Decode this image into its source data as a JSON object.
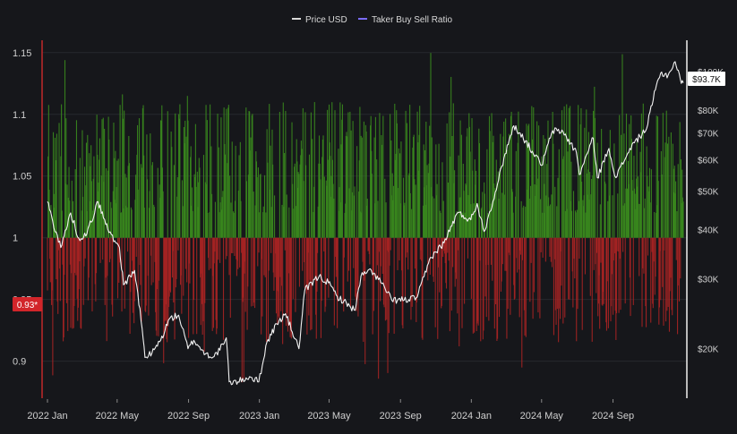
{
  "chart_data": {
    "type": "bar",
    "title": "",
    "legend": [
      {
        "name": "Price USD",
        "color": "#d9d9d9"
      },
      {
        "name": "Taker Buy Sell Ratio",
        "color": "#7b6cff"
      }
    ],
    "legend_placement": "top-center",
    "x_axis": {
      "tick_labels": [
        "2022 Jan",
        "2022 May",
        "2022 Sep",
        "2023 Jan",
        "2023 May",
        "2023 Sep",
        "2024 Jan",
        "2024 May",
        "2024 Sep"
      ],
      "range": [
        "2022-01-01",
        "2024-12-31"
      ]
    },
    "y_left": {
      "name": "Taker Buy Sell Ratio",
      "ticks": [
        0.9,
        0.95,
        1,
        1.05,
        1.1,
        1.15
      ],
      "tick_labels": [
        "0.9",
        "0.95",
        "1",
        "1.05",
        "1.1",
        "1.15"
      ],
      "range": [
        0.87,
        1.16
      ],
      "baseline": 1
    },
    "y_right": {
      "name": "Price USD",
      "scale": "log",
      "ticks": [
        20000,
        30000,
        40000,
        50000,
        60000,
        70000,
        80000,
        100000
      ],
      "tick_labels": [
        "$20K",
        "$30K",
        "$40K",
        "$50K",
        "$60K",
        "$70K",
        "$80K",
        "$100K"
      ],
      "range": [
        15000,
        120000
      ]
    },
    "grid": true,
    "colors": {
      "above_one": "#3a8a1e",
      "below_one": "#a82323",
      "price_line": "#f2f2f2",
      "background": "#16171b"
    },
    "current_ratio_label": "0.93*",
    "current_price_label": "$93.7K",
    "price_series": {
      "name": "Price USD",
      "points": [
        [
          "2022-01-01",
          47000
        ],
        [
          "2022-01-10",
          42000
        ],
        [
          "2022-01-24",
          36000
        ],
        [
          "2022-02-10",
          44000
        ],
        [
          "2022-02-24",
          38000
        ],
        [
          "2022-03-10",
          39000
        ],
        [
          "2022-03-29",
          47000
        ],
        [
          "2022-04-15",
          40000
        ],
        [
          "2022-05-05",
          36000
        ],
        [
          "2022-05-12",
          29000
        ],
        [
          "2022-05-31",
          31500
        ],
        [
          "2022-06-13",
          22500
        ],
        [
          "2022-06-18",
          19000
        ],
        [
          "2022-06-30",
          19500
        ],
        [
          "2022-07-15",
          21000
        ],
        [
          "2022-07-30",
          23800
        ],
        [
          "2022-08-15",
          24300
        ],
        [
          "2022-08-31",
          20000
        ],
        [
          "2022-09-10",
          21000
        ],
        [
          "2022-09-30",
          19400
        ],
        [
          "2022-10-15",
          19100
        ],
        [
          "2022-10-31",
          20500
        ],
        [
          "2022-11-05",
          21300
        ],
        [
          "2022-11-10",
          16500
        ],
        [
          "2022-11-25",
          16500
        ],
        [
          "2022-12-15",
          17000
        ],
        [
          "2022-12-31",
          16500
        ],
        [
          "2023-01-14",
          20800
        ],
        [
          "2023-01-31",
          23100
        ],
        [
          "2023-02-15",
          24500
        ],
        [
          "2023-03-10",
          20000
        ],
        [
          "2023-03-20",
          28000
        ],
        [
          "2023-04-14",
          30500
        ],
        [
          "2023-04-30",
          29300
        ],
        [
          "2023-05-15",
          27100
        ],
        [
          "2023-06-15",
          25000
        ],
        [
          "2023-06-25",
          30500
        ],
        [
          "2023-07-13",
          31500
        ],
        [
          "2023-07-31",
          29200
        ],
        [
          "2023-08-17",
          26500
        ],
        [
          "2023-09-15",
          26600
        ],
        [
          "2023-09-30",
          27000
        ],
        [
          "2023-10-23",
          34000
        ],
        [
          "2023-11-15",
          37000
        ],
        [
          "2023-12-08",
          44000
        ],
        [
          "2023-12-31",
          42300
        ],
        [
          "2024-01-11",
          46500
        ],
        [
          "2024-01-23",
          39500
        ],
        [
          "2024-02-15",
          52000
        ],
        [
          "2024-02-28",
          62000
        ],
        [
          "2024-03-14",
          73000
        ],
        [
          "2024-03-25",
          70000
        ],
        [
          "2024-04-15",
          63000
        ],
        [
          "2024-05-01",
          58000
        ],
        [
          "2024-05-20",
          71000
        ],
        [
          "2024-06-07",
          70500
        ],
        [
          "2024-06-30",
          62500
        ],
        [
          "2024-07-05",
          55000
        ],
        [
          "2024-07-29",
          68000
        ],
        [
          "2024-08-05",
          54000
        ],
        [
          "2024-08-25",
          64000
        ],
        [
          "2024-09-06",
          54000
        ],
        [
          "2024-09-30",
          64000
        ],
        [
          "2024-10-29",
          72000
        ],
        [
          "2024-11-13",
          90000
        ],
        [
          "2024-11-22",
          99000
        ],
        [
          "2024-12-05",
          98000
        ],
        [
          "2024-12-17",
          106000
        ],
        [
          "2024-12-26",
          95500
        ],
        [
          "2024-12-31",
          93700
        ]
      ]
    },
    "ratio_series": {
      "name": "Taker Buy Sell Ratio",
      "start": "2022-01-01",
      "interval_days": 1,
      "count": 1096,
      "note": "daily ratio bars, approximately 0.88 to 1.15 around 1"
    }
  }
}
